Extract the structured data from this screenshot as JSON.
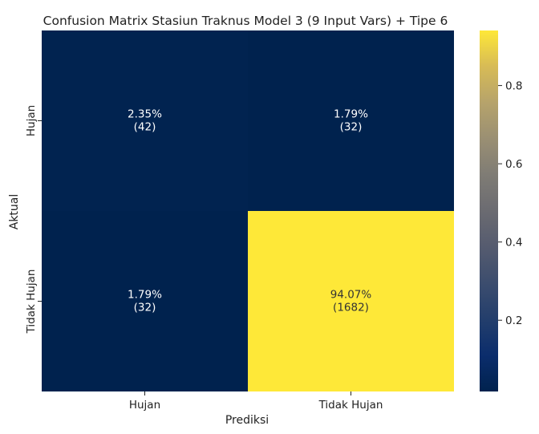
{
  "chart_data": {
    "type": "heatmap",
    "title": "Confusion Matrix Stasiun Traknus Model 3 (9 Input Vars) + Tipe 6",
    "xlabel": "Prediksi",
    "ylabel": "Aktual",
    "x_categories": [
      "Hujan",
      "Tidak Hujan"
    ],
    "y_categories": [
      "Hujan",
      "Tidak Hujan"
    ],
    "cells": [
      {
        "row": 0,
        "col": 0,
        "value": 0.0235,
        "label": "2.35%",
        "count": "(42)"
      },
      {
        "row": 0,
        "col": 1,
        "value": 0.0179,
        "label": "1.79%",
        "count": "(32)"
      },
      {
        "row": 1,
        "col": 0,
        "value": 0.0179,
        "label": "1.79%",
        "count": "(32)"
      },
      {
        "row": 1,
        "col": 1,
        "value": 0.9407,
        "label": "94.07%",
        "count": "(1682)"
      }
    ],
    "colormap": "cividis",
    "colorbar": {
      "vmin": 0.0179,
      "vmax": 0.9407,
      "ticks": [
        0.2,
        0.4,
        0.6,
        0.8
      ],
      "tick_labels": [
        "0.2",
        "0.4",
        "0.6",
        "0.8"
      ]
    },
    "colors": {
      "low": "#00224e",
      "high": "#fee838",
      "text_on_dark": "#ffffff",
      "text_on_light": "#333333"
    }
  }
}
